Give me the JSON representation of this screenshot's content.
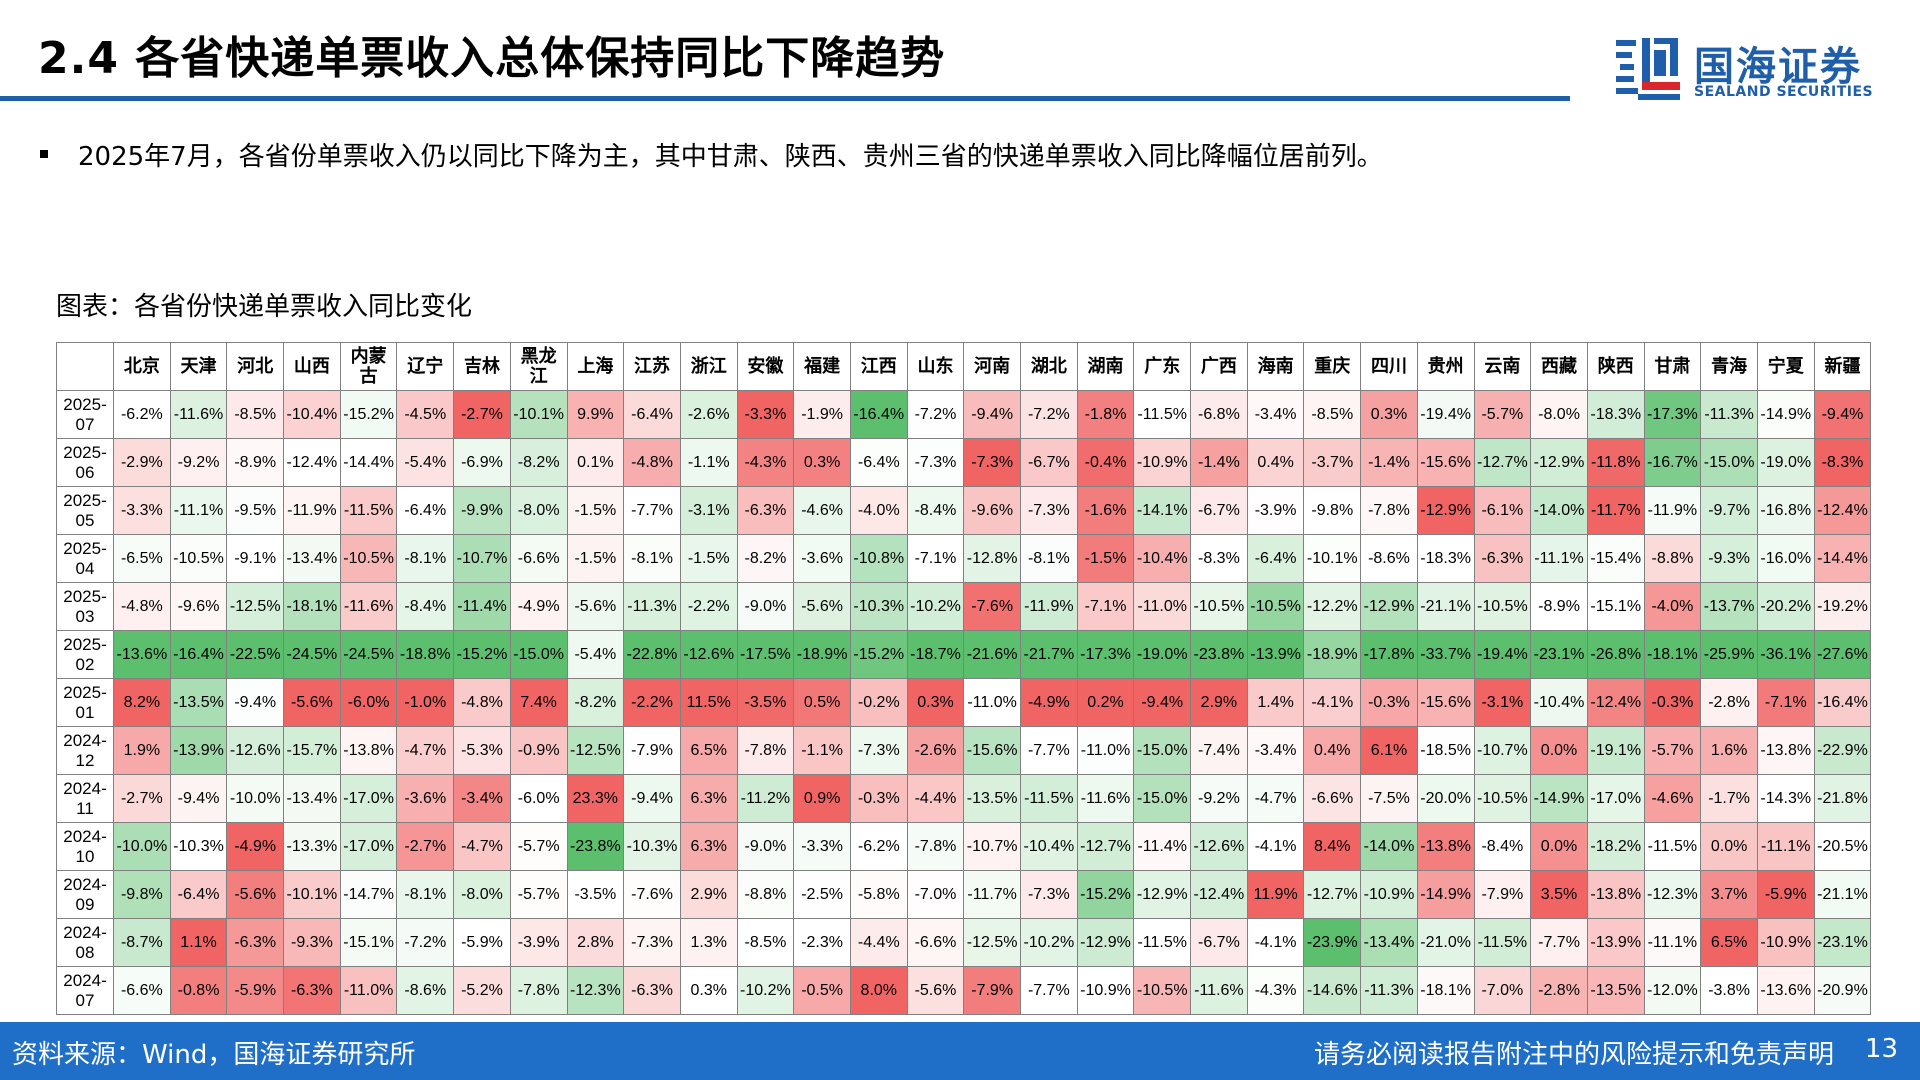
{
  "page": {
    "title": "2.4 各省快递单票收入总体保持同比下降趋势",
    "bullet": "2025年7月，各省份单票收入仍以同比下降为主，其中甘肃、陕西、贵州三省的快递单票收入同比降幅位居前列。",
    "figure_caption": "图表：各省份快递单票收入同比变化",
    "source": "资料来源：Wind，国海证券研究所",
    "disclaimer": "请务必阅读报告附注中的风险提示和免责声明",
    "page_number": "13"
  },
  "logo": {
    "name_cn": "国海证券",
    "name_en": "SEALAND SECURITIES",
    "brand_color": "#1f5ea8"
  },
  "colors": {
    "positive_max": "#f06464",
    "negative_max": "#5cbf6e",
    "neutral": "#ffffff",
    "footer_bg": "#1f6fc8"
  },
  "chart_data": {
    "type": "heatmap",
    "columns": [
      "北京",
      "天津",
      "河北",
      "山西",
      "内蒙古",
      "辽宁",
      "吉林",
      "黑龙江",
      "上海",
      "江苏",
      "浙江",
      "安徽",
      "福建",
      "江西",
      "山东",
      "河南",
      "湖北",
      "湖南",
      "广东",
      "广西",
      "海南",
      "重庆",
      "四川",
      "贵州",
      "云南",
      "西藏",
      "陕西",
      "甘肃",
      "青海",
      "宁夏",
      "新疆"
    ],
    "rows": [
      {
        "label": "2025-07",
        "values": [
          -6.2,
          -11.6,
          -8.5,
          -10.4,
          -15.2,
          -4.5,
          -2.7,
          -10.1,
          9.9,
          -6.4,
          -2.6,
          -3.3,
          -1.9,
          -16.4,
          -7.2,
          -9.4,
          -7.2,
          -1.8,
          -11.5,
          -6.8,
          -3.4,
          -8.5,
          0.3,
          -19.4,
          -5.7,
          -8.0,
          -18.3,
          -17.3,
          -11.3,
          -14.9,
          -9.4
        ]
      },
      {
        "label": "2025-06",
        "values": [
          -2.9,
          -9.2,
          -8.9,
          -12.4,
          -14.4,
          -5.4,
          -6.9,
          -8.2,
          0.1,
          -4.8,
          -1.1,
          -4.3,
          0.3,
          -6.4,
          -7.3,
          -7.3,
          -6.7,
          -0.4,
          -10.9,
          -1.4,
          0.4,
          -3.7,
          -1.4,
          -15.6,
          -12.7,
          -12.9,
          -11.8,
          -16.7,
          -15.0,
          -19.0,
          -8.3
        ]
      },
      {
        "label": "2025-05",
        "values": [
          -3.3,
          -11.1,
          -9.5,
          -11.9,
          -11.5,
          -6.4,
          -9.9,
          -8.0,
          -1.5,
          -7.7,
          -3.1,
          -6.3,
          -4.6,
          -4.0,
          -8.4,
          -9.6,
          -7.3,
          -1.6,
          -14.1,
          -6.7,
          -3.9,
          -9.8,
          -7.8,
          -12.9,
          -6.1,
          -14.0,
          -11.7,
          -11.9,
          -9.7,
          -16.8,
          -12.4
        ]
      },
      {
        "label": "2025-04",
        "values": [
          -6.5,
          -10.5,
          -9.1,
          -13.4,
          -10.5,
          -8.1,
          -10.7,
          -6.6,
          -1.5,
          -8.1,
          -1.5,
          -8.2,
          -3.6,
          -10.8,
          -7.1,
          -12.8,
          -8.1,
          -1.5,
          -10.4,
          -8.3,
          -6.4,
          -10.1,
          -8.6,
          -18.3,
          -6.3,
          -11.1,
          -15.4,
          -8.8,
          -9.3,
          -16.0,
          -14.4
        ]
      },
      {
        "label": "2025-03",
        "values": [
          -4.8,
          -9.6,
          -12.5,
          -18.1,
          -11.6,
          -8.4,
          -11.4,
          -4.9,
          -5.6,
          -11.3,
          -2.2,
          -9.0,
          -5.6,
          -10.3,
          -10.2,
          -7.6,
          -11.9,
          -7.1,
          -11.0,
          -10.5,
          -10.5,
          -12.2,
          -12.9,
          -21.1,
          -10.5,
          -8.9,
          -15.1,
          -4.0,
          -13.7,
          -20.2,
          -19.2
        ]
      },
      {
        "label": "2025-02",
        "values": [
          -13.6,
          -16.4,
          -22.5,
          -24.5,
          -24.5,
          -18.8,
          -15.2,
          -15.0,
          -5.4,
          -22.8,
          -12.6,
          -17.5,
          -18.9,
          -15.2,
          -18.7,
          -21.6,
          -21.7,
          -17.3,
          -19.0,
          -23.8,
          -13.9,
          -18.9,
          -17.8,
          -33.7,
          -19.4,
          -23.1,
          -26.8,
          -18.1,
          -25.9,
          -36.1,
          -27.6
        ]
      },
      {
        "label": "2025-01",
        "values": [
          8.2,
          -13.5,
          -9.4,
          -5.6,
          -6.0,
          -1.0,
          -4.8,
          7.4,
          -8.2,
          -2.2,
          11.5,
          -3.5,
          0.5,
          -0.2,
          0.3,
          -11.0,
          -4.9,
          0.2,
          -9.4,
          2.9,
          1.4,
          -4.1,
          -0.3,
          -15.6,
          -3.1,
          -10.4,
          -12.4,
          -0.3,
          -2.8,
          -7.1,
          -16.4
        ]
      },
      {
        "label": "2024-12",
        "values": [
          1.9,
          -13.9,
          -12.6,
          -15.7,
          -13.8,
          -4.7,
          -5.3,
          -0.9,
          -12.5,
          -7.9,
          6.5,
          -7.8,
          -1.1,
          -7.3,
          -2.6,
          -15.6,
          -7.7,
          -11.0,
          -15.0,
          -7.4,
          -3.4,
          0.4,
          6.1,
          -18.5,
          -10.7,
          0.0,
          -19.1,
          -5.7,
          1.6,
          -13.8,
          -22.9
        ]
      },
      {
        "label": "2024-11",
        "values": [
          -2.7,
          -9.4,
          -10.0,
          -13.4,
          -17.0,
          -3.6,
          -3.4,
          -6.0,
          23.3,
          -9.4,
          6.3,
          -11.2,
          0.9,
          -0.3,
          -4.4,
          -13.5,
          -11.5,
          -11.6,
          -15.0,
          -9.2,
          -4.7,
          -6.6,
          -7.5,
          -20.0,
          -10.5,
          -14.9,
          -17.0,
          -4.6,
          -1.7,
          -14.3,
          -21.8
        ]
      },
      {
        "label": "2024-10",
        "values": [
          -10.0,
          -10.3,
          -4.9,
          -13.3,
          -17.0,
          -2.7,
          -4.7,
          -5.7,
          -23.8,
          -10.3,
          6.3,
          -9.0,
          -3.3,
          -6.2,
          -7.8,
          -10.7,
          -10.4,
          -12.7,
          -11.4,
          -12.6,
          -4.1,
          8.4,
          -14.0,
          -13.8,
          -8.4,
          0.0,
          -18.2,
          -11.5,
          0.0,
          -11.1,
          -20.5
        ]
      },
      {
        "label": "2024-09",
        "values": [
          -9.8,
          -6.4,
          -5.6,
          -10.1,
          -14.7,
          -8.1,
          -8.0,
          -5.7,
          -3.5,
          -7.6,
          2.9,
          -8.8,
          -2.5,
          -5.8,
          -7.0,
          -11.7,
          -7.3,
          -15.2,
          -12.9,
          -12.4,
          11.9,
          -12.7,
          -10.9,
          -14.9,
          -7.9,
          3.5,
          -13.8,
          -12.3,
          3.7,
          -5.9,
          -21.1
        ]
      },
      {
        "label": "2024-08",
        "values": [
          -8.7,
          1.1,
          -6.3,
          -9.3,
          -15.1,
          -7.2,
          -5.9,
          -3.9,
          2.8,
          -7.3,
          1.3,
          -8.5,
          -2.3,
          -4.4,
          -6.6,
          -12.5,
          -10.2,
          -12.9,
          -11.5,
          -6.7,
          -4.1,
          -23.9,
          -13.4,
          -21.0,
          -11.5,
          -7.7,
          -13.9,
          -11.1,
          6.5,
          -10.9,
          -23.1
        ]
      },
      {
        "label": "2024-07",
        "values": [
          -6.6,
          -0.8,
          -5.9,
          -6.3,
          -11.0,
          -8.6,
          -5.2,
          -7.8,
          -12.3,
          -6.3,
          0.3,
          -10.2,
          -0.5,
          8.0,
          -5.6,
          -7.9,
          -7.7,
          -10.9,
          -10.5,
          -11.6,
          -4.3,
          -14.6,
          -11.3,
          -18.1,
          -7.0,
          -2.8,
          -13.5,
          -12.0,
          -3.8,
          -13.6,
          -20.9
        ]
      }
    ],
    "unit": "%",
    "color_scale": "per-column: red = highest, white = middle, green = lowest"
  }
}
